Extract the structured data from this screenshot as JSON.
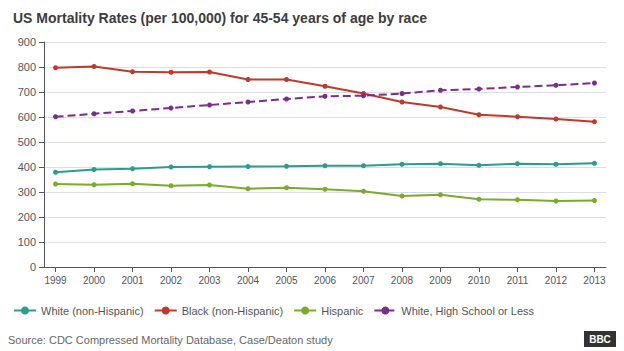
{
  "chart_data": {
    "type": "line",
    "title": "US Mortality Rates (per 100,000) for 45-54 years of age by race",
    "x": [
      1999,
      2000,
      2001,
      2002,
      2003,
      2004,
      2005,
      2006,
      2007,
      2008,
      2009,
      2010,
      2011,
      2012,
      2013
    ],
    "series": [
      {
        "name": "White (non-Hispanic)",
        "color": "#2a9d8f",
        "marker": "circle",
        "line_style": "solid",
        "values": [
          379,
          390,
          393,
          400,
          401,
          402,
          403,
          405,
          405,
          411,
          413,
          407,
          413,
          411,
          415
        ]
      },
      {
        "name": "Black (non-Hispanic)",
        "color": "#c0392b",
        "marker": "circle",
        "line_style": "solid",
        "values": [
          797,
          802,
          781,
          779,
          780,
          750,
          750,
          723,
          694,
          660,
          640,
          609,
          601,
          592,
          581
        ]
      },
      {
        "name": "Hispanic",
        "color": "#7aab2a",
        "marker": "circle",
        "line_style": "solid",
        "values": [
          332,
          329,
          333,
          325,
          328,
          313,
          317,
          311,
          303,
          284,
          289,
          271,
          269,
          264,
          266
        ]
      },
      {
        "name": "White, High School or Less",
        "color": "#7b2d8b",
        "marker": "circle",
        "line_style": "dashed",
        "values": [
          601,
          613,
          624,
          636,
          648,
          660,
          672,
          683,
          685,
          694,
          707,
          712,
          720,
          727,
          736
        ]
      }
    ],
    "xlim": [
      1998.7,
      2013.3
    ],
    "xticks": [
      1999,
      2000,
      2001,
      2002,
      2003,
      2004,
      2005,
      2006,
      2007,
      2008,
      2009,
      2010,
      2011,
      2012,
      2013
    ],
    "ylim": [
      0,
      900
    ],
    "yticks": [
      0,
      100,
      200,
      300,
      400,
      500,
      600,
      700,
      800,
      900
    ],
    "grid": true,
    "legend": "bottom",
    "annotations": [
      "Source: CDC Compressed Mortality Database, Case/Deaton study",
      "BBC"
    ]
  }
}
